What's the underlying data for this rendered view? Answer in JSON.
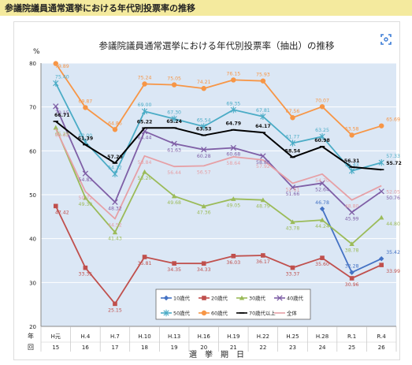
{
  "page": {
    "header_title": "参議院議員通常選挙における年代別投票率の推移"
  },
  "icons": {
    "expand": "expand-fullscreen-icon",
    "header_bg": "#f4ea9e"
  },
  "chart_data": {
    "type": "line",
    "title": "参議院議員通常選挙における年代別投票率（抽出）の推移",
    "ylabel": "%",
    "xlabel": "選　挙　期　日",
    "x_row_label_top": "年",
    "x_row_label_bottom": "回",
    "ylim": [
      20,
      80
    ],
    "yticks": [
      20,
      30,
      40,
      50,
      60,
      70,
      80
    ],
    "categories": [
      "H元",
      "H.4",
      "H.7",
      "H.10",
      "H.13",
      "H.16",
      "H.19",
      "H.22",
      "H.25",
      "H.28",
      "R.1",
      "R.4"
    ],
    "sessions": [
      "15",
      "16",
      "17",
      "18",
      "19",
      "20",
      "21",
      "22",
      "23",
      "24",
      "25",
      "26"
    ],
    "grid": true,
    "plot_background": "#dbe7f5",
    "legend_position": "bottom-center",
    "series": [
      {
        "name": "10歳代",
        "color": "#4472c4",
        "marker": "diamond",
        "values": [
          null,
          null,
          null,
          null,
          null,
          null,
          null,
          null,
          null,
          46.78,
          32.28,
          35.42
        ],
        "labels": [
          null,
          null,
          null,
          null,
          null,
          null,
          null,
          null,
          null,
          "46.78",
          "32.28",
          "35.42"
        ]
      },
      {
        "name": "20歳代",
        "color": "#c0504d",
        "marker": "square",
        "values": [
          47.42,
          33.35,
          25.15,
          35.81,
          34.35,
          34.33,
          36.03,
          36.17,
          33.37,
          35.6,
          30.96,
          33.99
        ],
        "labels": [
          "47.42",
          "33.35",
          "25.15",
          "35.81",
          "34.35",
          "34.33",
          "36.03",
          "36.17",
          "33.37",
          "35.60",
          "30.96",
          "33.99"
        ]
      },
      {
        "name": "30歳代",
        "color": "#9bbb59",
        "marker": "triangle",
        "values": [
          65.29,
          49.3,
          41.43,
          55.2,
          49.68,
          47.36,
          49.05,
          48.79,
          43.78,
          44.24,
          38.78,
          44.8
        ],
        "labels": [
          "65.29",
          "49.30",
          "41.43",
          "55.20",
          "49.68",
          "47.36",
          "49.05",
          "48.79",
          "43.78",
          "44.24",
          "38.78",
          "44.80"
        ]
      },
      {
        "name": "40歳代",
        "color": "#7f5fa6",
        "marker": "x",
        "values": [
          70.15,
          54.83,
          48.32,
          64.44,
          61.63,
          60.28,
          60.68,
          58.8,
          51.66,
          52.64,
          45.99,
          50.76
        ],
        "labels": [
          "70.15",
          "54.83",
          "48.32",
          "64.44",
          "61.63",
          "60.28",
          "60.68",
          "58.80",
          "51.66",
          "52.64",
          "45.99",
          "50.76"
        ]
      },
      {
        "name": "50歳代",
        "color": "#4bacc6",
        "marker": "star",
        "values": [
          75.4,
          62.0,
          54.72,
          69.0,
          67.3,
          65.54,
          69.35,
          67.81,
          61.77,
          63.25,
          55.43,
          57.33
        ],
        "labels": [
          "75.40",
          "62.00",
          "54.72",
          "69.00",
          "67.30",
          "65.54",
          "69.35",
          "67.81",
          "61.77",
          "63.25",
          "55.43",
          "57.33"
        ]
      },
      {
        "name": "60歳代",
        "color": "#f79646",
        "marker": "circle",
        "values": [
          79.89,
          69.87,
          64.86,
          75.24,
          75.05,
          74.21,
          76.15,
          75.93,
          67.56,
          70.07,
          63.58,
          65.69
        ],
        "labels": [
          "79.89",
          "69.87",
          "64.86",
          "75.24",
          "75.05",
          "74.21",
          "76.15",
          "75.93",
          "67.56",
          "70.07",
          "63.58",
          "65.69"
        ]
      },
      {
        "name": "70歳代以上",
        "color": "#000000",
        "marker": "plus",
        "values": [
          66.71,
          61.39,
          57.2,
          65.22,
          65.24,
          63.53,
          64.79,
          64.17,
          58.54,
          60.98,
          56.31,
          55.72
        ],
        "labels": [
          "66.71",
          "61.39",
          "57.20",
          "65.22",
          "65.24",
          "63.53",
          "64.79",
          "64.17",
          "58.54",
          "60.98",
          "56.31",
          "55.72"
        ]
      },
      {
        "name": "全体",
        "color": "#e6a0a6",
        "marker": "none",
        "values": [
          65.02,
          50.72,
          44.52,
          58.84,
          56.44,
          56.57,
          58.64,
          57.92,
          52.61,
          54.7,
          48.8,
          52.05
        ],
        "labels": [
          "65.02",
          "50.72",
          "44.52",
          "58.84",
          "56.44",
          "56.57",
          "58.64",
          "57.92",
          "52.61",
          "54.70",
          "48.80",
          "52.05"
        ]
      }
    ]
  }
}
